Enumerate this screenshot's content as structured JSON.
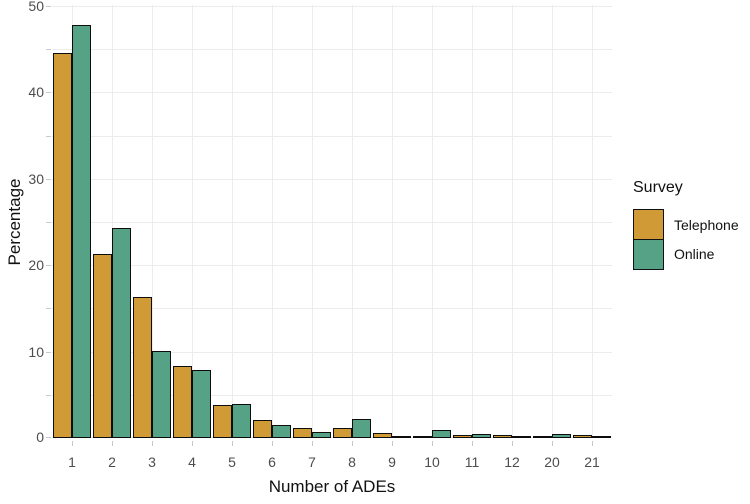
{
  "chart_data": {
    "type": "bar",
    "grouped": true,
    "title": "",
    "xlabel": "Number of ADEs",
    "ylabel": "Percentage",
    "categories": [
      "1",
      "2",
      "3",
      "4",
      "5",
      "6",
      "7",
      "8",
      "9",
      "10",
      "11",
      "12",
      "20",
      "21"
    ],
    "series": [
      {
        "name": "Telephone",
        "color": "#D09B36",
        "values": [
          44.6,
          21.3,
          16.3,
          8.3,
          3.8,
          2.1,
          1.2,
          1.2,
          0.6,
          0.1,
          0.4,
          0.4,
          0.1,
          0.4
        ]
      },
      {
        "name": "Online",
        "color": "#56A287",
        "values": [
          47.8,
          24.3,
          10.1,
          7.9,
          3.9,
          1.5,
          0.7,
          2.2,
          0.1,
          0.9,
          0.5,
          0.1,
          0.5,
          0.1
        ]
      }
    ],
    "ylim": [
      0,
      50
    ],
    "y_major_ticks": [
      0,
      10,
      20,
      30,
      40,
      50
    ],
    "y_minor_step": 5,
    "grid": "on",
    "legend": {
      "title": "Survey",
      "position": "right"
    }
  },
  "styles": {
    "background": "#FFFFFF",
    "bar_border_color": "#0D0D0D",
    "grid_color": "#ECECEC",
    "tick_color": "#C9C9C9",
    "tick_label_color": "#4D4D4D",
    "text_color": "#111111"
  }
}
